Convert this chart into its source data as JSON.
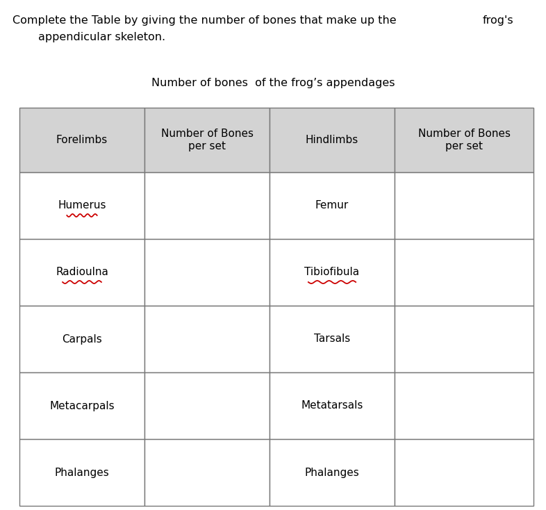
{
  "title_line1": "Complete the Table by giving the number of bones that make up the",
  "title_line1_suffix": "frog's",
  "title_line2": "appendicular skeleton.",
  "subtitle": "Number of bones  of the frog’s appendages",
  "header_row": [
    "Forelimbs",
    "Number of Bones\nper set",
    "Hindlimbs",
    "Number of Bones\nper set"
  ],
  "data_rows": [
    [
      "Humerus",
      "",
      "Femur",
      ""
    ],
    [
      "Radioulna",
      "",
      "Tibiofibula",
      ""
    ],
    [
      "Carpals",
      "",
      "Tarsals",
      ""
    ],
    [
      "Metacarpals",
      "",
      "Metatarsals",
      ""
    ],
    [
      "Phalanges",
      "",
      "Phalanges",
      ""
    ]
  ],
  "underline_cells": [
    [
      0,
      0
    ],
    [
      1,
      0
    ],
    [
      1,
      2
    ]
  ],
  "header_bg": "#d3d3d3",
  "cell_bg": "#ffffff",
  "border_color": "#777777",
  "text_color": "#000000",
  "underline_color": "#cc0000",
  "fig_width": 7.86,
  "fig_height": 7.34,
  "dpi": 100,
  "font_size_title": 11.5,
  "font_size_subtitle": 11.5,
  "font_size_header": 11,
  "font_size_body": 11
}
